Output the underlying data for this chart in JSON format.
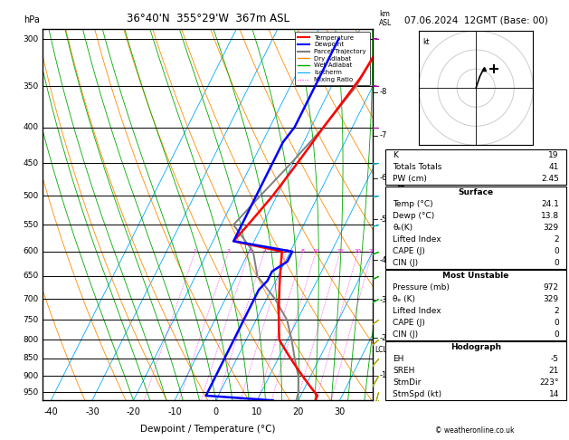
{
  "title_left": "36°40'N  355°29'W  367m ASL",
  "title_right": "07.06.2024  12GMT (Base: 00)",
  "xlabel": "Dewpoint / Temperature (°C)",
  "bg_color": "#ffffff",
  "p_min": 290,
  "p_max": 975,
  "t_min": -42,
  "t_max": 38,
  "skew_factor": 45.0,
  "sounding_pressure": [
    300,
    320,
    340,
    360,
    380,
    400,
    420,
    440,
    460,
    480,
    500,
    520,
    540,
    560,
    580,
    600,
    620,
    640,
    660,
    680,
    700,
    720,
    740,
    760,
    780,
    800,
    820,
    840,
    860,
    880,
    900,
    920,
    940,
    960,
    975
  ],
  "sounding_temp": [
    -3,
    -3.5,
    -4,
    -5,
    -6,
    -7,
    -7.8,
    -8.6,
    -9.4,
    -10.2,
    -11,
    -12,
    -13,
    -14,
    -15,
    -2,
    -1,
    0,
    1,
    2,
    3,
    4,
    5,
    6,
    7,
    8,
    10,
    12,
    14,
    16,
    18,
    20,
    22,
    24,
    24.1
  ],
  "sounding_dewp": [
    -14,
    -14,
    -14,
    -14,
    -14,
    -14,
    -15,
    -15,
    -15,
    -15,
    -15,
    -15,
    -15,
    -15,
    -15,
    0.5,
    0.5,
    -2,
    -2,
    -3,
    -3,
    -3,
    -3,
    -3,
    -3,
    -3,
    -3,
    -3,
    -3,
    -3,
    -3,
    -3,
    -3,
    -3,
    13.8
  ],
  "parcel_pressure": [
    300,
    350,
    400,
    450,
    500,
    550,
    600,
    650,
    700,
    750,
    800,
    850,
    900,
    950,
    975
  ],
  "parcel_temp": [
    -3,
    -4,
    -7,
    -10.5,
    -14,
    -17,
    -9,
    -5,
    2,
    7.5,
    11,
    14,
    17,
    19,
    19.5
  ],
  "pressure_levels": [
    300,
    350,
    400,
    450,
    500,
    550,
    600,
    650,
    700,
    750,
    800,
    850,
    900,
    950
  ],
  "km_levels": [
    8,
    7,
    6,
    5,
    4,
    3,
    2,
    1
  ],
  "km_pressures": [
    357,
    411,
    472,
    540,
    617,
    702,
    795,
    899
  ],
  "lcl_pressure": 828,
  "mixing_ratio_vals": [
    1,
    2,
    3,
    4,
    6,
    8,
    10,
    15,
    20,
    25
  ],
  "temp_color": "#ff0000",
  "dewp_color": "#0000ff",
  "parcel_color": "#808080",
  "dry_adiabat_color": "#ff8c00",
  "wet_adiabat_color": "#00aa00",
  "isotherm_color": "#00aaff",
  "mixing_color": "#ff00ff",
  "info_K": 19,
  "info_TT": 41,
  "info_PW": 2.45,
  "surf_temp": 24.1,
  "surf_dewp": 13.8,
  "surf_theta_e": 329,
  "surf_LI": 2,
  "surf_CAPE": 0,
  "surf_CIN": 0,
  "mu_pressure": 972,
  "mu_theta_e": 329,
  "mu_LI": 2,
  "mu_CAPE": 0,
  "mu_CIN": 0,
  "hodo_EH": -5,
  "hodo_SREH": 21,
  "hodo_StmDir": 223,
  "hodo_StmSpd": 14,
  "copyright": "© weatheronline.co.uk",
  "wind_pressures": [
    300,
    350,
    400,
    450,
    500,
    550,
    600,
    650,
    700,
    750,
    800,
    850,
    900,
    950,
    975
  ],
  "wind_dirs": [
    280,
    275,
    270,
    265,
    260,
    255,
    250,
    245,
    240,
    235,
    230,
    220,
    210,
    195,
    185
  ],
  "wind_spds": [
    50,
    45,
    40,
    35,
    30,
    25,
    20,
    18,
    15,
    12,
    10,
    8,
    7,
    6,
    5
  ],
  "wind_colors": [
    "#aa00aa",
    "#aa00aa",
    "#aa00aa",
    "#00aaaa",
    "#00aaaa",
    "#00aaaa",
    "#00aa00",
    "#00aa00",
    "#00aa00",
    "#aaaa00",
    "#aaaa00",
    "#aaaa00",
    "#aaaa00",
    "#aaaa00",
    "#aaaa00"
  ]
}
